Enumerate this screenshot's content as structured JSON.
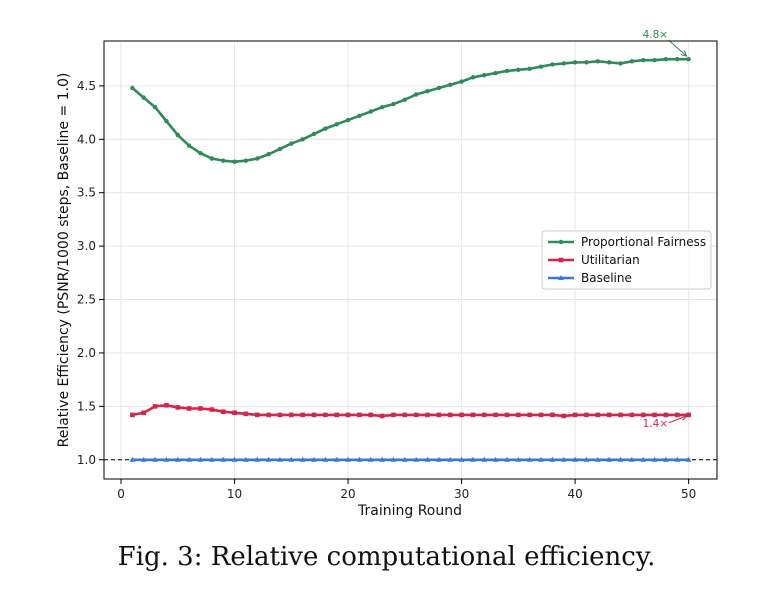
{
  "caption": "Fig. 3: Relative computational efficiency.",
  "chart_data": {
    "type": "line",
    "title": "",
    "xlabel": "Training Round",
    "ylabel": "Relative Efficiency (PSNR/1000 steps, Baseline = 1.0)",
    "xlim": [
      -1.5,
      52.5
    ],
    "ylim": [
      0.82,
      4.92
    ],
    "xticks": [
      0,
      10,
      20,
      30,
      40,
      50
    ],
    "yticks": [
      1.0,
      1.5,
      2.0,
      2.5,
      3.0,
      3.5,
      4.0,
      4.5
    ],
    "ytick_labels": [
      "1.0",
      "1.5",
      "2.0",
      "2.5",
      "3.0",
      "3.5",
      "4.0",
      "4.5"
    ],
    "grid": true,
    "legend_position": "center-right",
    "reference_line": {
      "y": 1.0,
      "style": "dashed",
      "color": "#000000"
    },
    "x": [
      1,
      2,
      3,
      4,
      5,
      6,
      7,
      8,
      9,
      10,
      11,
      12,
      13,
      14,
      15,
      16,
      17,
      18,
      19,
      20,
      21,
      22,
      23,
      24,
      25,
      26,
      27,
      28,
      29,
      30,
      31,
      32,
      33,
      34,
      35,
      36,
      37,
      38,
      39,
      40,
      41,
      42,
      43,
      44,
      45,
      46,
      47,
      48,
      49,
      50
    ],
    "series": [
      {
        "name": "Proportional Fairness",
        "color": "#2e8b57",
        "marker": "circle",
        "values": [
          4.48,
          4.39,
          4.3,
          4.17,
          4.04,
          3.94,
          3.87,
          3.82,
          3.8,
          3.79,
          3.8,
          3.82,
          3.86,
          3.91,
          3.96,
          4.0,
          4.05,
          4.1,
          4.14,
          4.18,
          4.22,
          4.26,
          4.3,
          4.33,
          4.37,
          4.42,
          4.45,
          4.48,
          4.51,
          4.54,
          4.58,
          4.6,
          4.62,
          4.64,
          4.65,
          4.66,
          4.68,
          4.7,
          4.71,
          4.72,
          4.72,
          4.73,
          4.72,
          4.71,
          4.73,
          4.74,
          4.74,
          4.75,
          4.75,
          4.75
        ]
      },
      {
        "name": "Utilitarian",
        "color": "#d2264a",
        "marker": "square",
        "values": [
          1.42,
          1.44,
          1.5,
          1.51,
          1.49,
          1.48,
          1.48,
          1.47,
          1.45,
          1.44,
          1.43,
          1.42,
          1.42,
          1.42,
          1.42,
          1.42,
          1.42,
          1.42,
          1.42,
          1.42,
          1.42,
          1.42,
          1.41,
          1.42,
          1.42,
          1.42,
          1.42,
          1.42,
          1.42,
          1.42,
          1.42,
          1.42,
          1.42,
          1.42,
          1.42,
          1.42,
          1.42,
          1.42,
          1.41,
          1.42,
          1.42,
          1.42,
          1.42,
          1.42,
          1.42,
          1.42,
          1.42,
          1.42,
          1.42,
          1.42
        ]
      },
      {
        "name": "Baseline",
        "color": "#3a76d8",
        "marker": "triangle",
        "values": [
          1.0,
          1.0,
          1.0,
          1.0,
          1.0,
          1.0,
          1.0,
          1.0,
          1.0,
          1.0,
          1.0,
          1.0,
          1.0,
          1.0,
          1.0,
          1.0,
          1.0,
          1.0,
          1.0,
          1.0,
          1.0,
          1.0,
          1.0,
          1.0,
          1.0,
          1.0,
          1.0,
          1.0,
          1.0,
          1.0,
          1.0,
          1.0,
          1.0,
          1.0,
          1.0,
          1.0,
          1.0,
          1.0,
          1.0,
          1.0,
          1.0,
          1.0,
          1.0,
          1.0,
          1.0,
          1.0,
          1.0,
          1.0,
          1.0,
          1.0
        ]
      }
    ],
    "annotations": [
      {
        "text": "4.8×",
        "series": "Proportional Fairness",
        "x": 50,
        "y": 4.75,
        "color": "#2e8b57",
        "placement": "above-left"
      },
      {
        "text": "1.4×",
        "series": "Utilitarian",
        "x": 50,
        "y": 1.42,
        "color": "#d2264a",
        "placement": "below-left"
      }
    ]
  }
}
